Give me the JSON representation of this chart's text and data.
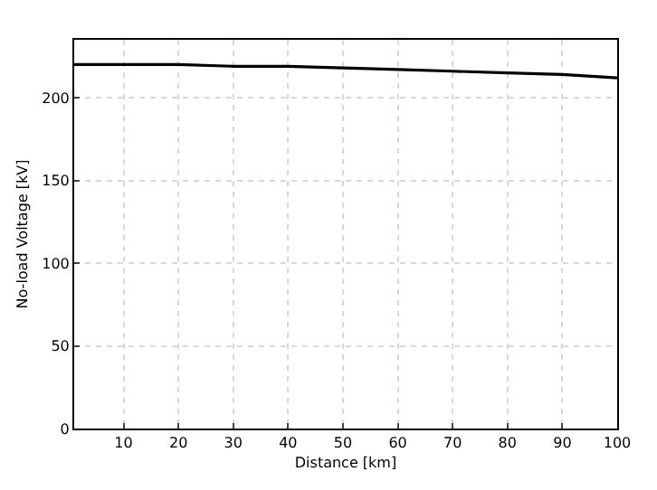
{
  "chart_data": {
    "type": "line",
    "xlabel": "Distance [km]",
    "ylabel": "No-load Voltage [kV]",
    "x": [
      1,
      10,
      20,
      30,
      40,
      50,
      60,
      70,
      80,
      90,
      100
    ],
    "series": [
      {
        "color": "#000000",
        "values": [
          220,
          220,
          220,
          219,
          219,
          218,
          217,
          216,
          215,
          214,
          212
        ]
      }
    ],
    "xlim": [
      1,
      100
    ],
    "xticks": [
      10,
      20,
      30,
      40,
      50,
      60,
      70,
      80,
      90,
      100
    ],
    "ylim": [
      0,
      235
    ],
    "yticks": [
      0,
      50,
      100,
      150,
      200
    ],
    "grid": true,
    "marker": "none",
    "line_style": "solid"
  }
}
